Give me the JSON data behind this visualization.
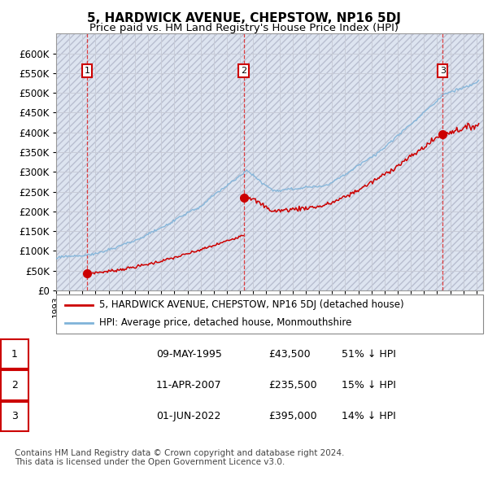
{
  "title": "5, HARDWICK AVENUE, CHEPSTOW, NP16 5DJ",
  "subtitle": "Price paid vs. HM Land Registry's House Price Index (HPI)",
  "ylim": [
    0,
    650000
  ],
  "yticks": [
    0,
    50000,
    100000,
    150000,
    200000,
    250000,
    300000,
    350000,
    400000,
    450000,
    500000,
    550000,
    600000
  ],
  "xlim_start": 1993.0,
  "xlim_end": 2025.5,
  "sale_dates": [
    1995.355,
    2007.278,
    2022.417
  ],
  "sale_prices": [
    43500,
    235500,
    395000
  ],
  "sale_labels": [
    "1",
    "2",
    "3"
  ],
  "hpi_line_color": "#7fb3d9",
  "sale_line_color": "#cc0000",
  "sale_dot_color": "#cc0000",
  "vline_color": "#dd2222",
  "grid_color": "#c8ccd8",
  "bg_color": "#dde4f0",
  "legend_entries": [
    "5, HARDWICK AVENUE, CHEPSTOW, NP16 5DJ (detached house)",
    "HPI: Average price, detached house, Monmouthshire"
  ],
  "table_data": [
    [
      "1",
      "09-MAY-1995",
      "£43,500",
      "51% ↓ HPI"
    ],
    [
      "2",
      "11-APR-2007",
      "£235,500",
      "15% ↓ HPI"
    ],
    [
      "3",
      "01-JUN-2022",
      "£395,000",
      "14% ↓ HPI"
    ]
  ],
  "footnote": "Contains HM Land Registry data © Crown copyright and database right 2024.\nThis data is licensed under the Open Government Licence v3.0.",
  "title_fontsize": 11,
  "subtitle_fontsize": 9.5
}
